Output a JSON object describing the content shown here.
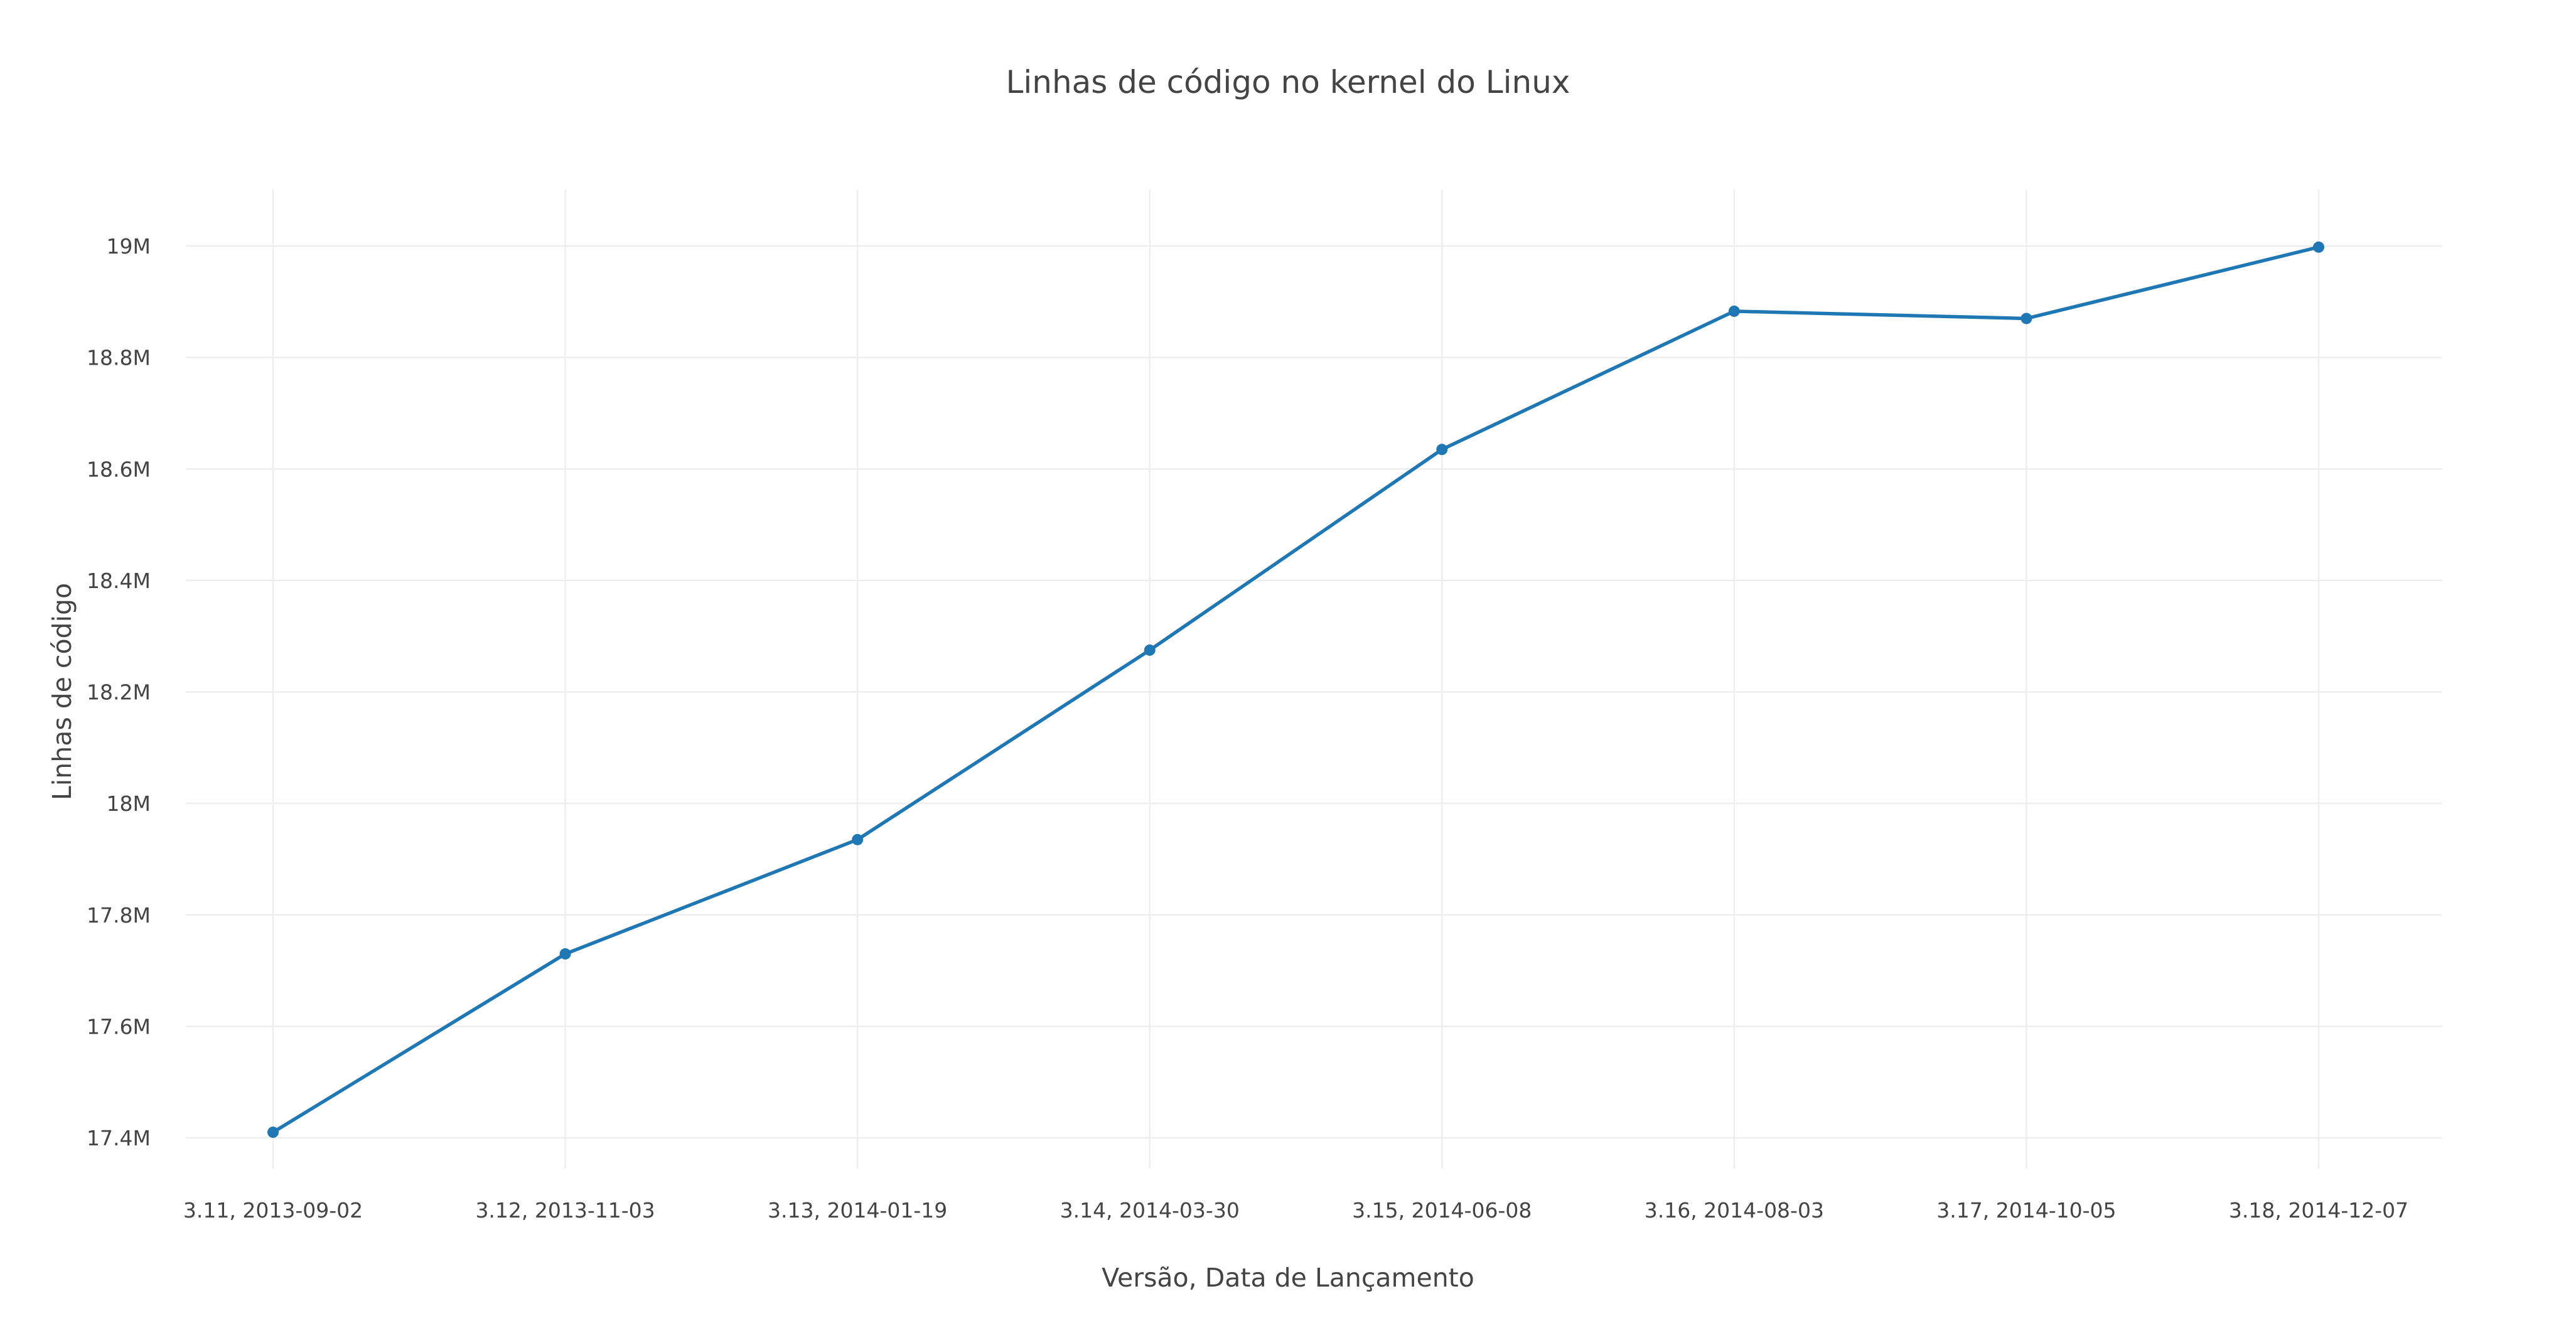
{
  "chart_data": {
    "type": "line",
    "title": "Linhas de código no kernel do Linux",
    "xlabel": "Versão, Data de Lançamento",
    "ylabel": "Linhas de código",
    "categories": [
      "3.11, 2013-09-02",
      "3.12, 2013-11-03",
      "3.13, 2014-01-19",
      "3.14, 2014-03-30",
      "3.15, 2014-06-08",
      "3.16, 2014-08-03",
      "3.17, 2014-10-05",
      "3.18, 2014-12-07"
    ],
    "series": [
      {
        "values": [
          17410000,
          17730000,
          17935000,
          18275000,
          18635000,
          18883000,
          18870000,
          18998000
        ],
        "color": "#1f77b4"
      }
    ],
    "ylim": [
      17400000,
      19000000
    ],
    "y_ticks": [
      17400000,
      17600000,
      17800000,
      18000000,
      18200000,
      18400000,
      18600000,
      18800000,
      19000000
    ],
    "y_tick_labels": [
      "17.4M",
      "17.6M",
      "17.8M",
      "18M",
      "18.2M",
      "18.4M",
      "18.6M",
      "18.8M",
      "19M"
    ],
    "grid": true,
    "legend": "none"
  }
}
